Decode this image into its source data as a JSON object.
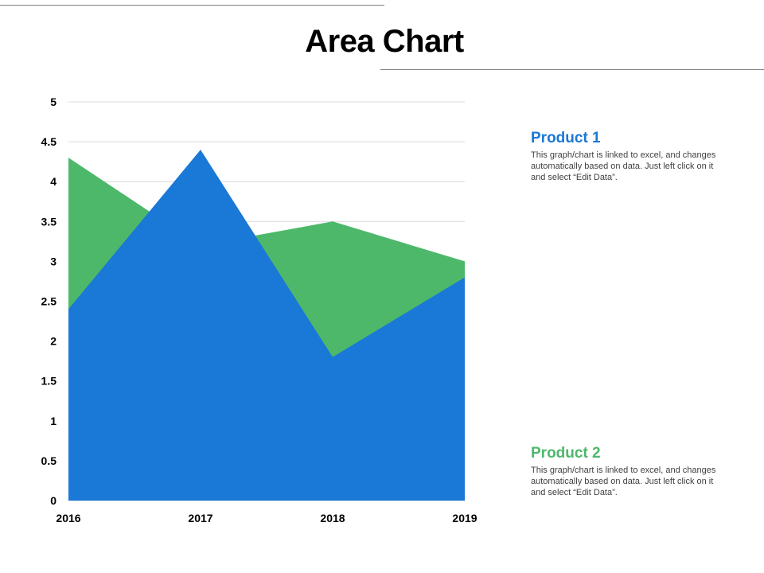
{
  "title": "Area Chart",
  "colors": {
    "product_1": "#1a78d6",
    "product_2": "#4db86a",
    "grid": "#d9d9d9",
    "rule": "#7f7f7f"
  },
  "chart_data": {
    "type": "area",
    "categories": [
      "2016",
      "2017",
      "2018",
      "2019"
    ],
    "series": [
      {
        "name": "Product 2",
        "values": [
          4.3,
          3.2,
          3.5,
          3.0
        ]
      },
      {
        "name": "Product 1",
        "values": [
          2.4,
          4.4,
          1.8,
          2.8
        ]
      }
    ],
    "ylim": [
      0,
      5
    ],
    "y_ticks": [
      "0",
      "0.5",
      "1",
      "1.5",
      "2",
      "2.5",
      "3",
      "3.5",
      "4",
      "4.5",
      "5"
    ],
    "grid": true,
    "legend_placement": "right"
  },
  "legend": {
    "items": [
      {
        "name": "Product 1",
        "description": "This graph/chart is linked to excel, and changes automatically based on data. Just left click on it and select “Edit Data”."
      },
      {
        "name": "Product 2",
        "description": "This graph/chart is linked to excel, and changes automatically based on data. Just left click on it and select “Edit Data”."
      }
    ]
  }
}
